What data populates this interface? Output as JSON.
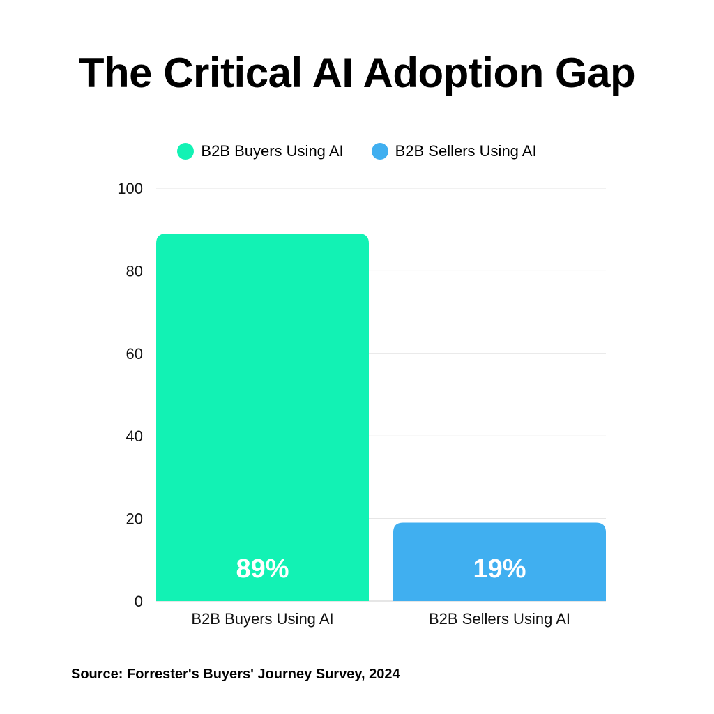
{
  "title": "The Critical AI Adoption Gap",
  "source": "Source: Forrester's Buyers' Journey Survey, 2024",
  "legend": [
    {
      "label": "B2B Buyers Using AI",
      "color": "#12F2B4"
    },
    {
      "label": "B2B Sellers Using AI",
      "color": "#40AFF0"
    }
  ],
  "chart_data": {
    "type": "bar",
    "title": "The Critical AI Adoption Gap",
    "categories": [
      "B2B Buyers Using AI",
      "B2B Sellers Using AI"
    ],
    "values": [
      89,
      19
    ],
    "data_labels": [
      "89%",
      "19%"
    ],
    "colors": [
      "#12F2B4",
      "#40AFF0"
    ],
    "ylim": [
      0,
      100
    ],
    "yticks": [
      0,
      20,
      40,
      60,
      80,
      100
    ],
    "xlabel": "",
    "ylabel": "",
    "grid": true,
    "legend_position": "top"
  }
}
